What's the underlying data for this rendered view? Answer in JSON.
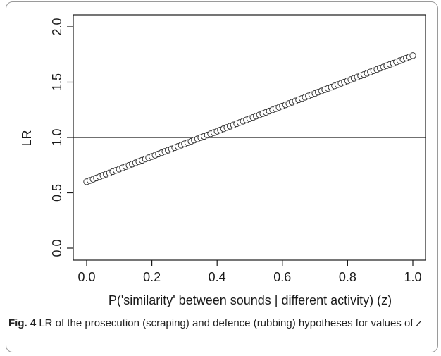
{
  "caption": {
    "label": "Fig. 4",
    "text_before": "LR of the prosecution (scraping) and defence (rubbing) hypotheses for values of",
    "variable": "z"
  },
  "chart_data": {
    "type": "scatter",
    "xlabel": "P('similarity' between sounds | different activity) (z)",
    "ylabel": "LR",
    "xlim": [
      0,
      1
    ],
    "ylim": [
      0,
      2
    ],
    "x_ticks": [
      "0.0",
      "0.2",
      "0.4",
      "0.6",
      "0.8",
      "1.0"
    ],
    "y_ticks": [
      "0.0",
      "0.5",
      "1.0",
      "1.5",
      "2.0"
    ],
    "reference_line": {
      "y": 1.0
    },
    "series": [
      {
        "marker": "open-circle",
        "color": "#333333",
        "x_start": 0.0,
        "x_end": 1.0,
        "x_step": 0.01,
        "y_start": 0.6,
        "y_end": 1.74,
        "relationship": "linear"
      }
    ]
  }
}
